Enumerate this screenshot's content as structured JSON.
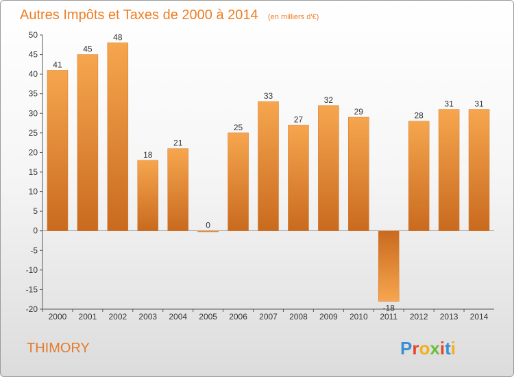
{
  "chart_data": {
    "type": "bar",
    "title": "Autres Impôts et Taxes de 2000 à 2014",
    "subtitle": "(en milliers d'€)",
    "categories": [
      "2000",
      "2001",
      "2002",
      "2003",
      "2004",
      "2005",
      "2006",
      "2007",
      "2008",
      "2009",
      "2010",
      "2011",
      "2012",
      "2013",
      "2014"
    ],
    "values": [
      41,
      45,
      48,
      18,
      21,
      0,
      25,
      33,
      27,
      32,
      29,
      -18,
      28,
      31,
      31
    ],
    "ylim": [
      -20,
      50
    ],
    "yticks": [
      50,
      45,
      40,
      35,
      30,
      25,
      20,
      15,
      10,
      5,
      0,
      -5,
      -10,
      -15,
      -20
    ],
    "grid": false,
    "xlabel": "",
    "ylabel": ""
  },
  "footer": {
    "commune": "THIMORY",
    "logo_letters": [
      "P",
      "r",
      "o",
      "x",
      "i",
      "t",
      "i"
    ],
    "logo_colors": [
      "#3a8fd4",
      "#e8442c",
      "#f2b01e",
      "#6abf3a",
      "#e8442c",
      "#3a8fd4",
      "#f2b01e"
    ]
  },
  "colors": {
    "bar_top": "#f5a24a",
    "bar_bottom": "#c8661b",
    "axis": "#555555"
  }
}
